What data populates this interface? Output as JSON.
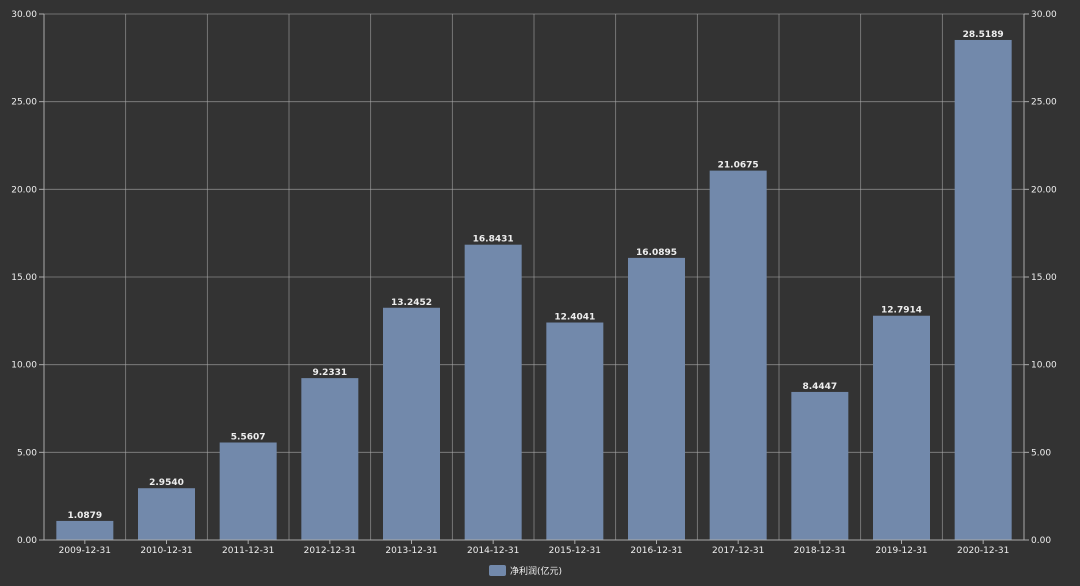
{
  "chart_data": {
    "type": "bar",
    "title": "",
    "xlabel": "",
    "ylabel": "",
    "categories": [
      "2009-12-31",
      "2010-12-31",
      "2011-12-31",
      "2012-12-31",
      "2013-12-31",
      "2014-12-31",
      "2015-12-31",
      "2016-12-31",
      "2017-12-31",
      "2018-12-31",
      "2019-12-31",
      "2020-12-31"
    ],
    "series": [
      {
        "name": "净利润(亿元)",
        "values": [
          1.0879,
          2.954,
          5.5607,
          9.2331,
          13.2452,
          16.8431,
          12.4041,
          16.0895,
          21.0675,
          8.4447,
          12.7914,
          28.5189
        ],
        "labels": [
          "1.0879",
          "2.9540",
          "5.5607",
          "9.2331",
          "13.2452",
          "16.8431",
          "12.4041",
          "16.0895",
          "21.0675",
          "8.4447",
          "12.7914",
          "28.5189"
        ]
      }
    ],
    "ylim": [
      0,
      30
    ],
    "yticks": [
      "0.00",
      "5.00",
      "10.00",
      "15.00",
      "20.00",
      "25.00",
      "30.00"
    ],
    "grid": true,
    "legend": "bottom-center",
    "colors": {
      "bar": "#7289ab",
      "background": "#333333",
      "grid": "#aaaaaa",
      "text": "#eeeeee"
    }
  }
}
